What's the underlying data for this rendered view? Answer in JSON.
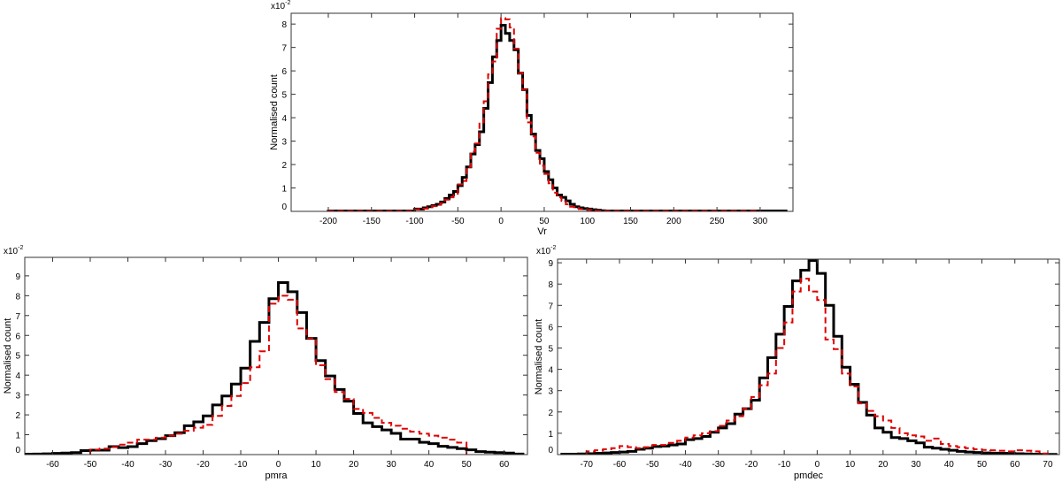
{
  "chart_data": [
    {
      "type": "histogram-step",
      "title": "",
      "xlabel": "Vr",
      "ylabel": "Normalised count",
      "y_scale_label": "x10",
      "y_scale_exponent": "-2",
      "xlim": [
        -243,
        338
      ],
      "ylim": [
        0,
        8.46
      ],
      "x_ticks": [
        -200,
        -150,
        -100,
        -50,
        0,
        50,
        100,
        150,
        200,
        250,
        300
      ],
      "y_ticks": [
        0,
        1,
        2,
        3,
        4,
        5,
        6,
        7,
        8
      ],
      "grid": false,
      "series": [
        {
          "name": "black-solid",
          "color": "#000000",
          "style": "solid",
          "bin_start": -200,
          "bin_width": 5,
          "values": [
            0.02,
            0.02,
            0.02,
            0.02,
            0.02,
            0.02,
            0.02,
            0.02,
            0.02,
            0.02,
            0.02,
            0.02,
            0.02,
            0.02,
            0.02,
            0.02,
            0.02,
            0.02,
            0.02,
            0.02,
            0.1,
            0.1,
            0.15,
            0.2,
            0.25,
            0.3,
            0.4,
            0.55,
            0.7,
            0.85,
            1.1,
            1.45,
            1.9,
            2.45,
            2.85,
            3.4,
            4.4,
            5.5,
            6.6,
            7.3,
            7.95,
            7.6,
            7.3,
            6.9,
            5.9,
            5.2,
            4.1,
            3.3,
            2.6,
            2.25,
            1.7,
            1.35,
            1.0,
            0.7,
            0.6,
            0.45,
            0.3,
            0.2,
            0.15,
            0.12,
            0.1,
            0.07,
            0.05,
            0.03,
            0.02,
            0.02,
            0.02,
            0.02,
            0.02,
            0.02,
            0.02,
            0.02,
            0.02,
            0.02,
            0.02,
            0.02,
            0.02,
            0.02,
            0.02,
            0.02,
            0.02,
            0.02,
            0.02,
            0.02,
            0.02,
            0.02,
            0.02,
            0.02,
            0.02,
            0.02,
            0.02,
            0.02,
            0.02,
            0.02,
            0.02,
            0.02,
            0.02,
            0.02,
            0.02,
            0.02,
            0.02,
            0.02,
            0.02,
            0.02,
            0.02,
            0.02
          ]
        },
        {
          "name": "red-dashed",
          "color": "#e00000",
          "style": "dashed",
          "bin_start": -200,
          "bin_width": 5,
          "values": [
            0.02,
            0.02,
            0.02,
            0.02,
            0.02,
            0.02,
            0.02,
            0.02,
            0.02,
            0.02,
            0.02,
            0.02,
            0.02,
            0.02,
            0.02,
            0.02,
            0.02,
            0.02,
            0.02,
            0.02,
            0.08,
            0.1,
            0.12,
            0.18,
            0.22,
            0.28,
            0.35,
            0.5,
            0.6,
            0.75,
            1.15,
            1.3,
            1.9,
            2.55,
            2.9,
            3.8,
            4.7,
            5.85,
            6.4,
            7.8,
            8.25,
            8.2,
            7.85,
            6.95,
            5.9,
            5.2,
            3.8,
            3.2,
            2.5,
            1.95,
            1.6,
            1.2,
            0.8,
            0.6,
            0.45,
            0.3,
            0.2,
            0.15,
            0.1,
            0.08,
            0.06,
            0.04,
            0.03,
            0.02,
            0.02,
            0.02,
            0.02,
            0.02,
            0.02,
            0.02,
            0.02,
            0.02,
            0.02,
            0.02,
            0.02,
            0.02,
            0.02,
            0.02,
            0.02,
            0.02,
            0.02,
            0.02,
            0.02,
            0.02,
            0.02,
            0.02,
            0.02,
            0.02,
            0.02,
            0.02,
            0.02,
            0.02,
            0.02,
            0.02,
            0.02,
            0.02,
            0.02,
            0.02,
            0.02,
            0.02
          ]
        }
      ]
    },
    {
      "type": "histogram-step",
      "title": "",
      "xlabel": "pmra",
      "ylabel": "Normalised count",
      "y_scale_label": "x10",
      "y_scale_exponent": "-2",
      "xlim": [
        -67.4,
        66.2
      ],
      "ylim": [
        0,
        9.93
      ],
      "x_ticks": [
        -60,
        -50,
        -40,
        -30,
        -20,
        -10,
        0,
        10,
        20,
        30,
        40,
        50,
        60
      ],
      "y_ticks": [
        0,
        1,
        2,
        3,
        4,
        5,
        6,
        7,
        8,
        9
      ],
      "grid": false,
      "series": [
        {
          "name": "black-solid",
          "color": "#000000",
          "style": "solid",
          "bin_start": -67.5,
          "bin_width": 2.5,
          "values": [
            0.02,
            0.03,
            0.04,
            0.06,
            0.08,
            0.1,
            0.2,
            0.22,
            0.22,
            0.4,
            0.35,
            0.4,
            0.55,
            0.7,
            0.8,
            0.95,
            1.1,
            1.45,
            1.65,
            1.95,
            2.5,
            2.95,
            3.55,
            4.35,
            5.7,
            6.65,
            7.85,
            8.66,
            8.2,
            7.15,
            5.85,
            4.73,
            3.96,
            3.28,
            2.69,
            2.07,
            1.6,
            1.41,
            1.24,
            1.07,
            0.78,
            0.78,
            0.62,
            0.55,
            0.42,
            0.36,
            0.3,
            0.24,
            0.15,
            0.12,
            0.1,
            0.08,
            0.03
          ]
        },
        {
          "name": "red-dashed",
          "color": "#e00000",
          "style": "dashed",
          "bin_start": -50,
          "bin_width": 2.5,
          "values": [
            0.25,
            0.3,
            0.38,
            0.5,
            0.6,
            0.75,
            0.75,
            0.85,
            0.95,
            1.05,
            1.2,
            1.35,
            1.5,
            1.95,
            2.45,
            2.95,
            3.6,
            4.4,
            5.2,
            7.6,
            8.0,
            7.8,
            6.35,
            5.85,
            4.5,
            3.8,
            3.15,
            2.8,
            2.3,
            2.1,
            1.85,
            1.6,
            1.45,
            1.3,
            1.15,
            1.05,
            0.95,
            0.85,
            0.75,
            0.6
          ]
        }
      ]
    },
    {
      "type": "histogram-step",
      "title": "",
      "xlabel": "pmdec",
      "ylabel": "Normalised count",
      "y_scale_label": "x10",
      "y_scale_exponent": "-2",
      "xlim": [
        -78.8,
        73.5
      ],
      "ylim": [
        0,
        9.17
      ],
      "x_ticks": [
        -70,
        -60,
        -50,
        -40,
        -30,
        -20,
        -10,
        0,
        10,
        20,
        30,
        40,
        50,
        60,
        70
      ],
      "y_ticks": [
        0,
        1,
        2,
        3,
        4,
        5,
        6,
        7,
        8,
        9
      ],
      "grid": false,
      "series": [
        {
          "name": "black-solid",
          "color": "#000000",
          "style": "solid",
          "bin_start": -77.5,
          "bin_width": 2.5,
          "values": [
            0.02,
            0.02,
            0.03,
            0.04,
            0.06,
            0.08,
            0.1,
            0.12,
            0.15,
            0.25,
            0.3,
            0.38,
            0.4,
            0.45,
            0.5,
            0.7,
            0.75,
            0.85,
            1.05,
            1.25,
            1.45,
            1.9,
            2.15,
            2.55,
            3.6,
            4.55,
            5.65,
            6.95,
            8.15,
            8.65,
            9.1,
            8.5,
            7.0,
            5.55,
            4.1,
            3.3,
            2.45,
            1.85,
            1.25,
            1.05,
            0.8,
            0.75,
            0.65,
            0.55,
            0.35,
            0.3,
            0.25,
            0.2,
            0.15,
            0.12,
            0.1,
            0.08,
            0.07,
            0.06,
            0.05,
            0.04,
            0.03,
            0.02,
            0.01,
            0.01
          ]
        },
        {
          "name": "red-dashed",
          "color": "#e00000",
          "style": "dashed",
          "bin_start": -70,
          "bin_width": 2.5,
          "values": [
            0.15,
            0.2,
            0.25,
            0.3,
            0.4,
            0.35,
            0.3,
            0.35,
            0.45,
            0.45,
            0.55,
            0.65,
            0.8,
            0.9,
            1.0,
            1.1,
            1.35,
            1.6,
            1.8,
            2.15,
            2.7,
            3.25,
            3.8,
            5.0,
            6.2,
            7.65,
            8.25,
            7.65,
            7.25,
            5.4,
            4.95,
            3.8,
            3.2,
            2.4,
            2.05,
            1.8,
            1.6,
            1.25,
            1.0,
            0.9,
            0.85,
            0.65,
            0.75,
            0.5,
            0.4,
            0.35,
            0.3,
            0.25,
            0.22,
            0.2,
            0.18,
            0.15,
            0.2,
            0.18,
            0.15,
            0.05
          ]
        }
      ]
    }
  ]
}
